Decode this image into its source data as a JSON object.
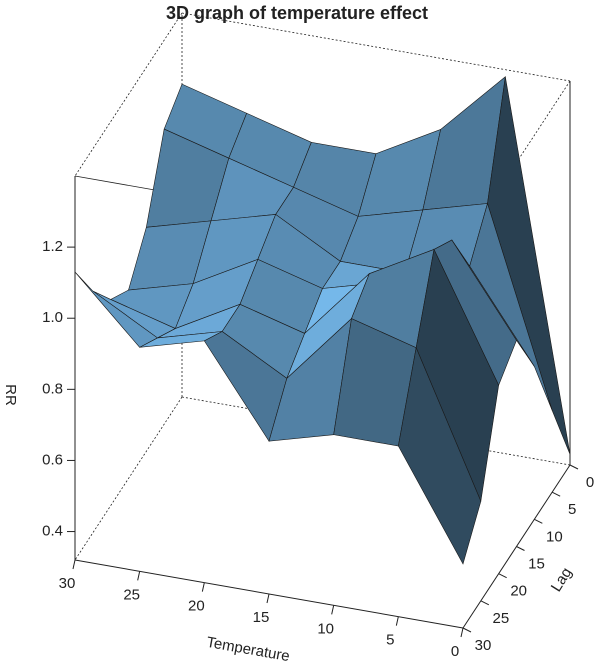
{
  "chart_data": {
    "type": "surface",
    "title": "3D graph of temperature effect",
    "xlabel": "Temperature",
    "ylabel": "Lag",
    "zlabel": "RR",
    "x": [
      0,
      5,
      10,
      15,
      20,
      25,
      30
    ],
    "y": [
      0,
      5,
      10,
      15,
      20,
      25,
      30
    ],
    "z": [
      [
        0.35,
        1.38,
        1.2,
        1.1,
        1.1,
        1.15,
        1.2
      ],
      [
        0.55,
        1.1,
        1.05,
        1.0,
        1.05,
        1.1,
        1.15
      ],
      [
        0.75,
        1.0,
        0.95,
        0.95,
        1.05,
        1.0,
        0.95
      ],
      [
        0.9,
        1.15,
        1.0,
        0.95,
        1.0,
        0.9,
        0.85
      ],
      [
        0.85,
        1.2,
        1.1,
        0.9,
        0.95,
        0.85,
        0.9
      ],
      [
        0.6,
        1.0,
        1.05,
        0.85,
        0.95,
        0.9,
        1.0
      ],
      [
        0.5,
        0.8,
        0.8,
        0.75,
        1.0,
        0.95,
        1.13
      ]
    ],
    "xlim": [
      0,
      30
    ],
    "ylim": [
      0,
      30
    ],
    "zlim": [
      0.32,
      1.4
    ],
    "xticks": [
      0,
      5,
      10,
      15,
      20,
      25,
      30
    ],
    "yticks": [
      0,
      5,
      10,
      15,
      20,
      25,
      30
    ],
    "zticks": [
      0.4,
      0.6,
      0.8,
      {
        "value": 1,
        "label": "1.0"
      },
      1.2
    ],
    "color": "#74b6e8"
  }
}
